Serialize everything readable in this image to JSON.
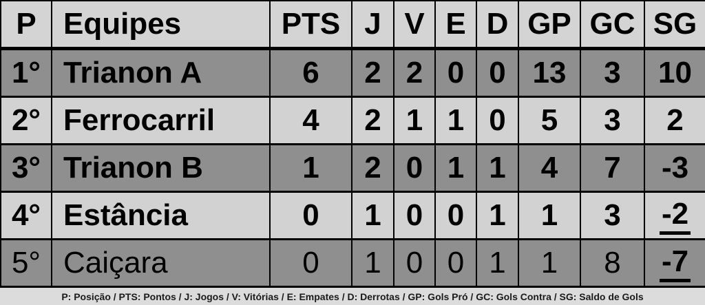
{
  "chart_data": {
    "type": "table",
    "columns": [
      "P",
      "Equipes",
      "PTS",
      "J",
      "V",
      "E",
      "D",
      "GP",
      "GC",
      "SG"
    ],
    "rows": [
      {
        "pos": "1°",
        "team": "Trianon A",
        "pts": 6,
        "j": 2,
        "v": 2,
        "e": 0,
        "d": 0,
        "gp": 13,
        "gc": 3,
        "sg": 10
      },
      {
        "pos": "2°",
        "team": "Ferrocarril",
        "pts": 4,
        "j": 2,
        "v": 1,
        "e": 1,
        "d": 0,
        "gp": 5,
        "gc": 3,
        "sg": 2
      },
      {
        "pos": "3°",
        "team": "Trianon B",
        "pts": 1,
        "j": 2,
        "v": 0,
        "e": 1,
        "d": 1,
        "gp": 4,
        "gc": 7,
        "sg": -3
      },
      {
        "pos": "4°",
        "team": "Estância",
        "pts": 0,
        "j": 1,
        "v": 0,
        "e": 0,
        "d": 1,
        "gp": 1,
        "gc": 3,
        "sg": -2
      },
      {
        "pos": "5°",
        "team": "Caiçara",
        "pts": 0,
        "j": 1,
        "v": 0,
        "e": 0,
        "d": 1,
        "gp": 1,
        "gc": 8,
        "sg": -7
      }
    ],
    "legend": "P: Posição / PTS: Pontos / J: Jogos / V: Vitórias / E: Empates / D: Derrotas / GP: Gols Pró / GC: Gols Contra / SG: Saldo de Gols"
  },
  "row_styles": {
    "shades": [
      "dark",
      "light",
      "dark",
      "light",
      "dark"
    ],
    "bold_rows": [
      true,
      true,
      true,
      true,
      false
    ],
    "sg_underlined_rows": [
      3,
      4
    ],
    "sg_bold_rows": [
      3,
      4
    ]
  },
  "colors": {
    "row-light": "#d2d2d2",
    "row-dark": "#8f8f8f",
    "header-bg": "#d4d4d4",
    "border": "#000000",
    "footer-bg": "#dcdcdc",
    "text": "#000000"
  }
}
